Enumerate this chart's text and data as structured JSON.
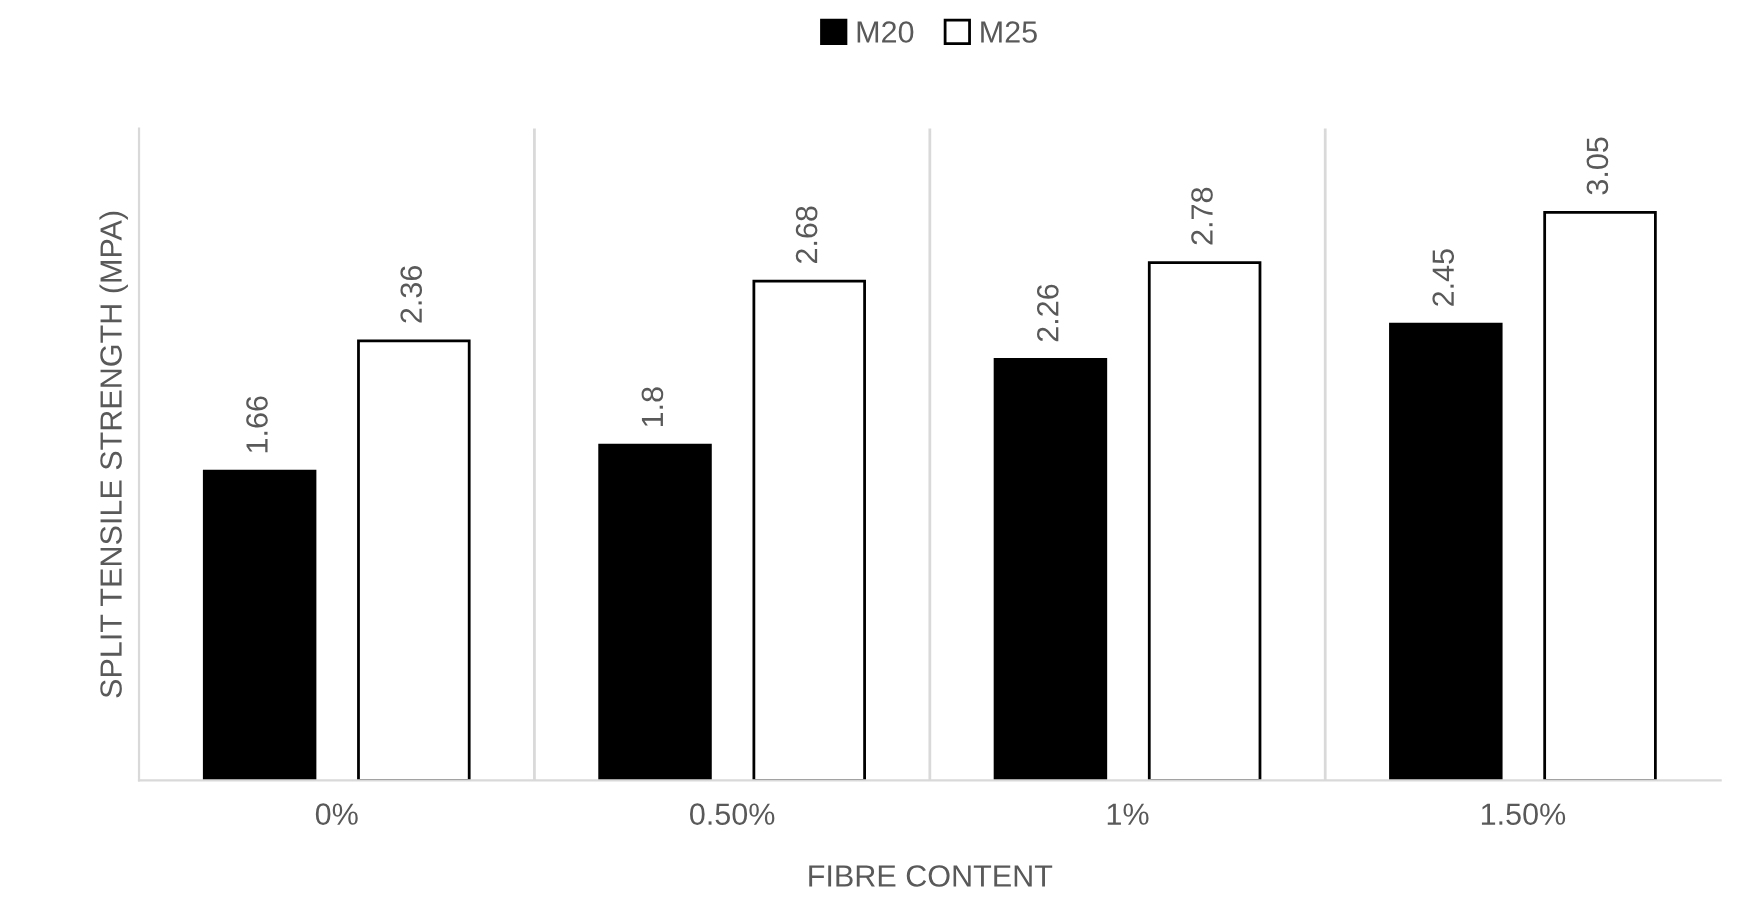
{
  "chart_data": {
    "type": "bar",
    "xlabel": "FIBRE CONTENT",
    "ylabel": "SPLIT TENSILE STRENGTH (MPA)",
    "categories": [
      "0%",
      "0.50%",
      "1%",
      "1.50%"
    ],
    "series": [
      {
        "name": "M20",
        "color": "#000000",
        "values": [
          1.66,
          1.8,
          2.26,
          2.45
        ]
      },
      {
        "name": "M25",
        "color": "#ffffff",
        "values": [
          2.36,
          2.68,
          2.78,
          3.05
        ]
      }
    ],
    "ylim": [
      0,
      3.5
    ],
    "data_labels": true,
    "grid": "x",
    "legend": "top",
    "tick_labels": "x"
  }
}
